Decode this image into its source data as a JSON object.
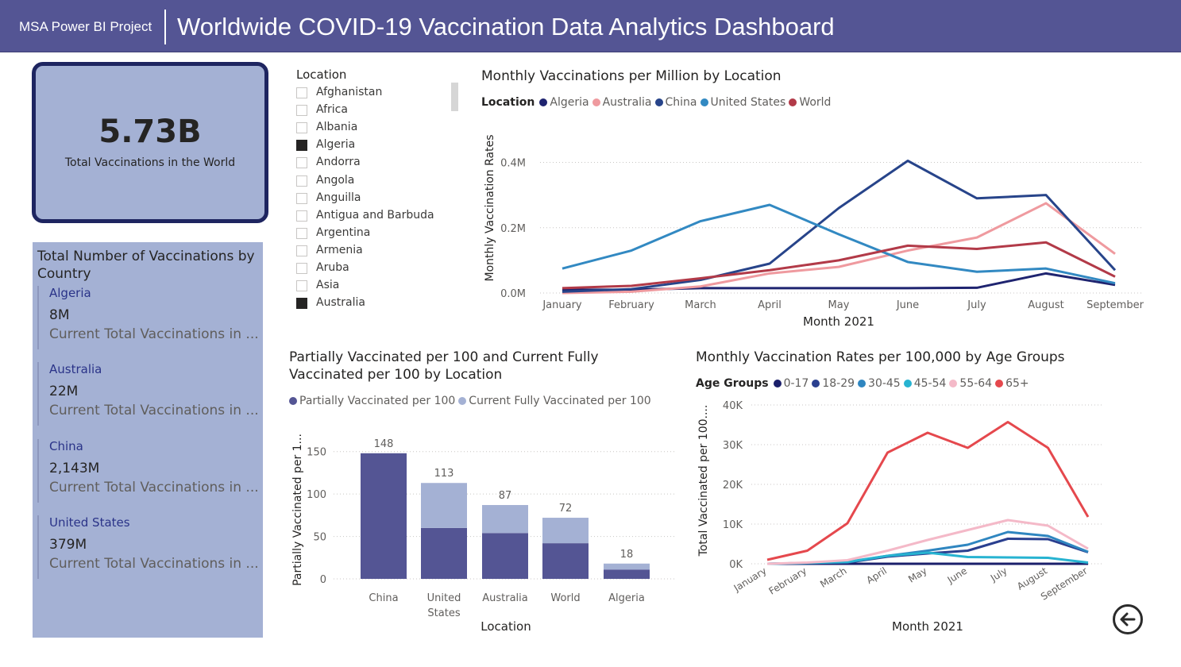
{
  "header": {
    "brand": "MSA Power BI Project",
    "title": "Worldwide COVID-19 Vaccination Data Analytics Dashboard"
  },
  "card": {
    "value": "5.73B",
    "label": "Total Vaccinations in the World"
  },
  "multirow": {
    "title": "Total Number of Vaccinations by Country",
    "rows": [
      {
        "name": "Algeria",
        "value": "8M",
        "desc": "Current Total Vaccinations in ..."
      },
      {
        "name": "Australia",
        "value": "22M",
        "desc": "Current Total Vaccinations in ..."
      },
      {
        "name": "China",
        "value": "2,143M",
        "desc": "Current Total Vaccinations in ..."
      },
      {
        "name": "United States",
        "value": "379M",
        "desc": "Current Total Vaccinations in ..."
      }
    ]
  },
  "slicer": {
    "title": "Location",
    "items": [
      {
        "label": "Afghanistan",
        "checked": false
      },
      {
        "label": "Africa",
        "checked": false
      },
      {
        "label": "Albania",
        "checked": false
      },
      {
        "label": "Algeria",
        "checked": true
      },
      {
        "label": "Andorra",
        "checked": false
      },
      {
        "label": "Angola",
        "checked": false
      },
      {
        "label": "Anguilla",
        "checked": false
      },
      {
        "label": "Antigua and Barbuda",
        "checked": false
      },
      {
        "label": "Argentina",
        "checked": false
      },
      {
        "label": "Armenia",
        "checked": false
      },
      {
        "label": "Aruba",
        "checked": false
      },
      {
        "label": "Asia",
        "checked": false
      },
      {
        "label": "Australia",
        "checked": true
      }
    ]
  },
  "chart_data": [
    {
      "type": "line",
      "title": "Monthly Vaccinations per Million by Location",
      "legend_title": "Location",
      "legend_position": "top-left",
      "xlabel": "Month 2021",
      "ylabel": "Monthly Vaccination Rates",
      "ylim": [
        0,
        0.45
      ],
      "yticks": [
        0,
        0.2,
        0.4
      ],
      "ytick_labels": [
        "0.0M",
        "0.2M",
        "0.4M"
      ],
      "grid": true,
      "categories": [
        "January",
        "February",
        "March",
        "April",
        "May",
        "June",
        "July",
        "August",
        "September"
      ],
      "series": [
        {
          "name": "Algeria",
          "color": "#1f2470",
          "values": [
            0.01,
            0.01,
            0.015,
            0.015,
            0.015,
            0.015,
            0.016,
            0.06,
            0.025
          ]
        },
        {
          "name": "Australia",
          "color": "#ef9a9f",
          "values": [
            0,
            0.004,
            0.02,
            0.06,
            0.08,
            0.13,
            0.17,
            0.275,
            0.12
          ]
        },
        {
          "name": "China",
          "color": "#27448a",
          "values": [
            0.004,
            0.012,
            0.04,
            0.09,
            0.26,
            0.405,
            0.29,
            0.3,
            0.07
          ]
        },
        {
          "name": "United States",
          "color": "#3289c2",
          "values": [
            0.075,
            0.13,
            0.22,
            0.27,
            0.18,
            0.095,
            0.065,
            0.075,
            0.03
          ]
        },
        {
          "name": "World",
          "color": "#b23a48",
          "values": [
            0.015,
            0.022,
            0.045,
            0.07,
            0.1,
            0.145,
            0.135,
            0.155,
            0.05
          ]
        }
      ]
    },
    {
      "type": "bar",
      "stacked": true,
      "title": "Partially Vaccinated per 100 and Current Fully Vaccinated per 100 by Location",
      "legend_position": "top-left",
      "xlabel": "Location",
      "ylabel": "Partially Vaccinated per 1...",
      "ylim": [
        0,
        160
      ],
      "yticks": [
        0,
        50,
        100,
        150
      ],
      "grid": true,
      "categories": [
        "China",
        "United States",
        "Australia",
        "World",
        "Algeria"
      ],
      "category_lines": [
        [
          "China"
        ],
        [
          "United",
          "States"
        ],
        [
          "Australia"
        ],
        [
          "World"
        ],
        [
          "Algeria"
        ]
      ],
      "series": [
        {
          "name": "Partially Vaccinated per 100",
          "color": "#545594",
          "values": [
            148,
            60,
            54,
            42,
            11
          ]
        },
        {
          "name": "Current Fully Vaccinated per 100",
          "color": "#a4b1d4",
          "values": [
            0,
            53,
            33,
            30,
            7
          ]
        }
      ],
      "totals": [
        148,
        113,
        87,
        72,
        18
      ]
    },
    {
      "type": "line",
      "title": "Monthly Vaccination Rates per 100,000 by Age Groups",
      "legend_title": "Age Groups",
      "legend_position": "top-left",
      "xlabel": "Month 2021",
      "ylabel": "Total Vaccinated per 100....",
      "ylim": [
        0,
        40000
      ],
      "yticks": [
        0,
        10000,
        20000,
        30000,
        40000
      ],
      "ytick_labels": [
        "0K",
        "10K",
        "20K",
        "30K",
        "40K"
      ],
      "grid": true,
      "categories": [
        "January",
        "February",
        "March",
        "April",
        "May",
        "June",
        "July",
        "August",
        "September"
      ],
      "series": [
        {
          "name": "0-17",
          "color": "#1b1f6b",
          "values": [
            0,
            0,
            0,
            0,
            0,
            0,
            0,
            0,
            0
          ]
        },
        {
          "name": "18-29",
          "color": "#2a3f8f",
          "values": [
            0,
            200,
            300,
            1800,
            2600,
            3300,
            6300,
            6200,
            2900
          ]
        },
        {
          "name": "30-45",
          "color": "#2f86c0",
          "values": [
            0,
            200,
            400,
            2000,
            3300,
            4800,
            8000,
            7000,
            3000
          ]
        },
        {
          "name": "45-54",
          "color": "#27b3d1",
          "values": [
            0,
            200,
            500,
            2000,
            2800,
            1700,
            1600,
            1500,
            300
          ]
        },
        {
          "name": "55-64",
          "color": "#f4b9c8",
          "values": [
            0,
            300,
            900,
            3300,
            6000,
            8500,
            11000,
            9600,
            3800
          ]
        },
        {
          "name": "65+",
          "color": "#e5484d",
          "values": [
            1000,
            3300,
            10200,
            28000,
            33000,
            29200,
            35700,
            29200,
            11800
          ]
        }
      ]
    }
  ]
}
